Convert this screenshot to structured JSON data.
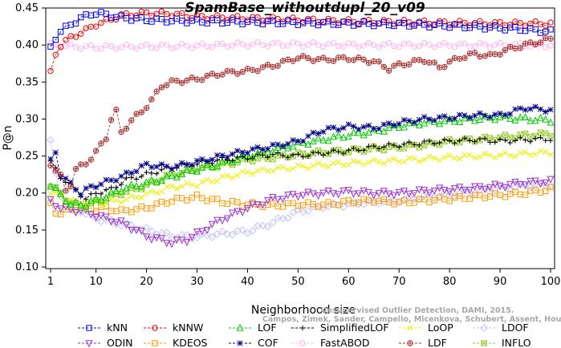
{
  "chart_data": {
    "type": "line",
    "title": "SpamBase_withoutdupl_20_v09",
    "xlabel": "Neighborhood size",
    "ylabel": "P@n",
    "xlim": [
      1,
      100
    ],
    "ylim": [
      0.1,
      0.45
    ],
    "x_ticks": [
      1,
      10,
      20,
      30,
      40,
      50,
      60,
      70,
      80,
      90,
      100
    ],
    "y_ticks": [
      0.1,
      0.15,
      0.2,
      0.25,
      0.3,
      0.35,
      0.4,
      0.45
    ],
    "x_tick_labels": [
      "1",
      "10",
      "20",
      "30",
      "40",
      "50",
      "60",
      "70",
      "80",
      "90",
      "100"
    ],
    "y_tick_labels": [
      "0.10",
      "0.15",
      "0.20",
      "0.25",
      "0.30",
      "0.35",
      "0.40",
      "0.45"
    ],
    "grid": false,
    "legend_position": "bottom",
    "citation": "Campos, Zimek, Sander, Campello, Micenkova, Schubert, Assent, Houle",
    "citation_line1": "Unsupervised Outlier Detection, DAMI, 2015.",
    "series": [
      {
        "name": "kNN",
        "color": "#0000ee",
        "marker": "square",
        "dashed": true,
        "points": [
          [
            1,
            0.397
          ],
          [
            2,
            0.41
          ],
          [
            3,
            0.418
          ],
          [
            5,
            0.428
          ],
          [
            7,
            0.436
          ],
          [
            9,
            0.442
          ],
          [
            10,
            0.443
          ],
          [
            12,
            0.441
          ],
          [
            15,
            0.437
          ],
          [
            20,
            0.434
          ],
          [
            25,
            0.433
          ],
          [
            30,
            0.432
          ],
          [
            40,
            0.431
          ],
          [
            50,
            0.43
          ],
          [
            60,
            0.429
          ],
          [
            70,
            0.428
          ],
          [
            80,
            0.426
          ],
          [
            90,
            0.423
          ],
          [
            95,
            0.421
          ],
          [
            100,
            0.418
          ]
        ]
      },
      {
        "name": "kNNW",
        "color": "#ee0000",
        "marker": "circle",
        "dashed": true,
        "points": [
          [
            1,
            0.362
          ],
          [
            2,
            0.388
          ],
          [
            3,
            0.4
          ],
          [
            5,
            0.41
          ],
          [
            8,
            0.42
          ],
          [
            10,
            0.428
          ],
          [
            12,
            0.432
          ],
          [
            15,
            0.44
          ],
          [
            20,
            0.443
          ],
          [
            25,
            0.442
          ],
          [
            30,
            0.438
          ],
          [
            35,
            0.437
          ],
          [
            40,
            0.436
          ],
          [
            50,
            0.434
          ],
          [
            60,
            0.432
          ],
          [
            70,
            0.431
          ],
          [
            80,
            0.43
          ],
          [
            90,
            0.429
          ],
          [
            100,
            0.429
          ]
        ]
      },
      {
        "name": "LOF",
        "color": "#00cc00",
        "marker": "triangle-up",
        "dashed": true,
        "points": [
          [
            1,
            0.21
          ],
          [
            3,
            0.198
          ],
          [
            5,
            0.184
          ],
          [
            8,
            0.185
          ],
          [
            12,
            0.195
          ],
          [
            15,
            0.205
          ],
          [
            20,
            0.213
          ],
          [
            25,
            0.222
          ],
          [
            30,
            0.232
          ],
          [
            35,
            0.24
          ],
          [
            40,
            0.25
          ],
          [
            45,
            0.258
          ],
          [
            50,
            0.266
          ],
          [
            55,
            0.272
          ],
          [
            60,
            0.278
          ],
          [
            65,
            0.283
          ],
          [
            70,
            0.29
          ],
          [
            75,
            0.295
          ],
          [
            80,
            0.297
          ],
          [
            85,
            0.3
          ],
          [
            90,
            0.302
          ],
          [
            95,
            0.3
          ],
          [
            100,
            0.298
          ]
        ]
      },
      {
        "name": "SimplifiedLOF",
        "color": "#000000",
        "marker": "plus",
        "dashed": true,
        "points": [
          [
            1,
            0.242
          ],
          [
            3,
            0.222
          ],
          [
            5,
            0.21
          ],
          [
            8,
            0.192
          ],
          [
            10,
            0.2
          ],
          [
            13,
            0.205
          ],
          [
            16,
            0.218
          ],
          [
            20,
            0.225
          ],
          [
            25,
            0.235
          ],
          [
            30,
            0.24
          ],
          [
            35,
            0.245
          ],
          [
            40,
            0.248
          ],
          [
            45,
            0.252
          ],
          [
            50,
            0.25
          ],
          [
            55,
            0.254
          ],
          [
            60,
            0.257
          ],
          [
            65,
            0.262
          ],
          [
            70,
            0.265
          ],
          [
            75,
            0.268
          ],
          [
            80,
            0.27
          ],
          [
            85,
            0.272
          ],
          [
            90,
            0.27
          ],
          [
            95,
            0.272
          ],
          [
            100,
            0.273
          ]
        ]
      },
      {
        "name": "LoOP",
        "color": "#eeee00",
        "marker": "x",
        "dashed": true,
        "points": [
          [
            1,
            0.2
          ],
          [
            3,
            0.196
          ],
          [
            5,
            0.19
          ],
          [
            8,
            0.185
          ],
          [
            10,
            0.186
          ],
          [
            15,
            0.19
          ],
          [
            20,
            0.198
          ],
          [
            25,
            0.208
          ],
          [
            30,
            0.212
          ],
          [
            35,
            0.22
          ],
          [
            40,
            0.228
          ],
          [
            45,
            0.232
          ],
          [
            50,
            0.235
          ],
          [
            55,
            0.238
          ],
          [
            60,
            0.24
          ],
          [
            65,
            0.242
          ],
          [
            70,
            0.244
          ],
          [
            75,
            0.246
          ],
          [
            80,
            0.248
          ],
          [
            85,
            0.25
          ],
          [
            90,
            0.251
          ],
          [
            95,
            0.253
          ],
          [
            100,
            0.255
          ]
        ]
      },
      {
        "name": "LDOF",
        "color": "#c4c4f5",
        "marker": "diamond",
        "dashed": true,
        "points": [
          [
            1,
            0.27
          ],
          [
            2,
            0.225
          ],
          [
            3,
            0.198
          ],
          [
            5,
            0.185
          ],
          [
            8,
            0.172
          ],
          [
            10,
            0.166
          ],
          [
            15,
            0.158
          ],
          [
            20,
            0.15
          ],
          [
            25,
            0.142
          ],
          [
            30,
            0.141
          ],
          [
            35,
            0.145
          ],
          [
            40,
            0.148
          ],
          [
            45,
            0.16
          ],
          [
            50,
            0.175
          ],
          [
            55,
            0.182
          ],
          [
            60,
            0.185
          ],
          [
            65,
            0.188
          ],
          [
            70,
            0.19
          ],
          [
            75,
            0.195
          ],
          [
            80,
            0.198
          ],
          [
            85,
            0.202
          ],
          [
            90,
            0.206
          ],
          [
            95,
            0.21
          ],
          [
            100,
            0.212
          ]
        ]
      },
      {
        "name": "ODIN",
        "color": "#9933cc",
        "marker": "triangle-down",
        "dashed": true,
        "points": [
          [
            1,
            0.19
          ],
          [
            2,
            0.185
          ],
          [
            3,
            0.18
          ],
          [
            5,
            0.178
          ],
          [
            8,
            0.175
          ],
          [
            10,
            0.17
          ],
          [
            15,
            0.16
          ],
          [
            18,
            0.15
          ],
          [
            20,
            0.142
          ],
          [
            25,
            0.133
          ],
          [
            28,
            0.137
          ],
          [
            30,
            0.145
          ],
          [
            35,
            0.165
          ],
          [
            40,
            0.18
          ],
          [
            45,
            0.192
          ],
          [
            50,
            0.198
          ],
          [
            55,
            0.2
          ],
          [
            60,
            0.202
          ],
          [
            65,
            0.2
          ],
          [
            70,
            0.2
          ],
          [
            75,
            0.203
          ],
          [
            80,
            0.205
          ],
          [
            85,
            0.207
          ],
          [
            90,
            0.21
          ],
          [
            95,
            0.214
          ],
          [
            100,
            0.216
          ]
        ]
      },
      {
        "name": "KDEOS",
        "color": "#ff9900",
        "marker": "square",
        "dashed": true,
        "points": [
          [
            1,
            0.185
          ],
          [
            2,
            0.175
          ],
          [
            3,
            0.172
          ],
          [
            5,
            0.178
          ],
          [
            8,
            0.183
          ],
          [
            10,
            0.178
          ],
          [
            12,
            0.18
          ],
          [
            15,
            0.175
          ],
          [
            18,
            0.178
          ],
          [
            20,
            0.18
          ],
          [
            25,
            0.19
          ],
          [
            30,
            0.195
          ],
          [
            35,
            0.188
          ],
          [
            40,
            0.185
          ],
          [
            45,
            0.183
          ],
          [
            50,
            0.185
          ],
          [
            55,
            0.184
          ],
          [
            60,
            0.188
          ],
          [
            65,
            0.19
          ],
          [
            70,
            0.187
          ],
          [
            75,
            0.19
          ],
          [
            80,
            0.192
          ],
          [
            85,
            0.195
          ],
          [
            90,
            0.197
          ],
          [
            95,
            0.2
          ],
          [
            100,
            0.205
          ]
        ]
      },
      {
        "name": "COF",
        "color": "#000088",
        "marker": "star",
        "dashed": true,
        "points": [
          [
            1,
            0.243
          ],
          [
            2,
            0.255
          ],
          [
            3,
            0.225
          ],
          [
            5,
            0.212
          ],
          [
            7,
            0.2
          ],
          [
            9,
            0.208
          ],
          [
            12,
            0.215
          ],
          [
            15,
            0.222
          ],
          [
            20,
            0.238
          ],
          [
            25,
            0.235
          ],
          [
            30,
            0.242
          ],
          [
            35,
            0.25
          ],
          [
            40,
            0.257
          ],
          [
            45,
            0.263
          ],
          [
            50,
            0.27
          ],
          [
            55,
            0.285
          ],
          [
            60,
            0.29
          ],
          [
            65,
            0.288
          ],
          [
            70,
            0.295
          ],
          [
            75,
            0.3
          ],
          [
            80,
            0.302
          ],
          [
            85,
            0.305
          ],
          [
            90,
            0.305
          ],
          [
            95,
            0.315
          ],
          [
            100,
            0.312
          ]
        ]
      },
      {
        "name": "FastABOD",
        "color": "#ffb3ee",
        "marker": "circle",
        "dashed": true,
        "points": [
          [
            1,
            0.4
          ],
          [
            5,
            0.398
          ],
          [
            10,
            0.397
          ],
          [
            20,
            0.398
          ],
          [
            30,
            0.399
          ],
          [
            40,
            0.401
          ],
          [
            50,
            0.401
          ],
          [
            60,
            0.4
          ],
          [
            70,
            0.4
          ],
          [
            80,
            0.4
          ],
          [
            90,
            0.4
          ],
          [
            100,
            0.4
          ]
        ]
      },
      {
        "name": "LDF",
        "color": "#aa3333",
        "marker": "circle-plus",
        "dashed": true,
        "points": [
          [
            1,
            0.24
          ],
          [
            3,
            0.222
          ],
          [
            4,
            0.203
          ],
          [
            5,
            0.212
          ],
          [
            6,
            0.232
          ],
          [
            8,
            0.24
          ],
          [
            10,
            0.255
          ],
          [
            12,
            0.275
          ],
          [
            13,
            0.3
          ],
          [
            14,
            0.31
          ],
          [
            15,
            0.282
          ],
          [
            17,
            0.298
          ],
          [
            19,
            0.31
          ],
          [
            21,
            0.325
          ],
          [
            23,
            0.345
          ],
          [
            25,
            0.35
          ],
          [
            30,
            0.354
          ],
          [
            35,
            0.362
          ],
          [
            40,
            0.365
          ],
          [
            45,
            0.372
          ],
          [
            50,
            0.383
          ],
          [
            55,
            0.38
          ],
          [
            60,
            0.382
          ],
          [
            65,
            0.378
          ],
          [
            68,
            0.368
          ],
          [
            70,
            0.373
          ],
          [
            75,
            0.38
          ],
          [
            78,
            0.37
          ],
          [
            82,
            0.383
          ],
          [
            85,
            0.388
          ],
          [
            88,
            0.385
          ],
          [
            92,
            0.395
          ],
          [
            95,
            0.4
          ],
          [
            100,
            0.408
          ]
        ]
      },
      {
        "name": "INFLO",
        "color": "#99cc33",
        "marker": "cross-square",
        "dashed": true,
        "points": [
          [
            1,
            0.21
          ],
          [
            3,
            0.2
          ],
          [
            5,
            0.185
          ],
          [
            8,
            0.182
          ],
          [
            10,
            0.188
          ],
          [
            15,
            0.2
          ],
          [
            20,
            0.21
          ],
          [
            25,
            0.225
          ],
          [
            30,
            0.232
          ],
          [
            35,
            0.238
          ],
          [
            40,
            0.245
          ],
          [
            45,
            0.248
          ],
          [
            50,
            0.252
          ],
          [
            55,
            0.255
          ],
          [
            60,
            0.257
          ],
          [
            65,
            0.26
          ],
          [
            70,
            0.262
          ],
          [
            75,
            0.265
          ],
          [
            80,
            0.27
          ],
          [
            85,
            0.272
          ],
          [
            90,
            0.275
          ],
          [
            95,
            0.278
          ],
          [
            100,
            0.28
          ]
        ]
      }
    ]
  }
}
